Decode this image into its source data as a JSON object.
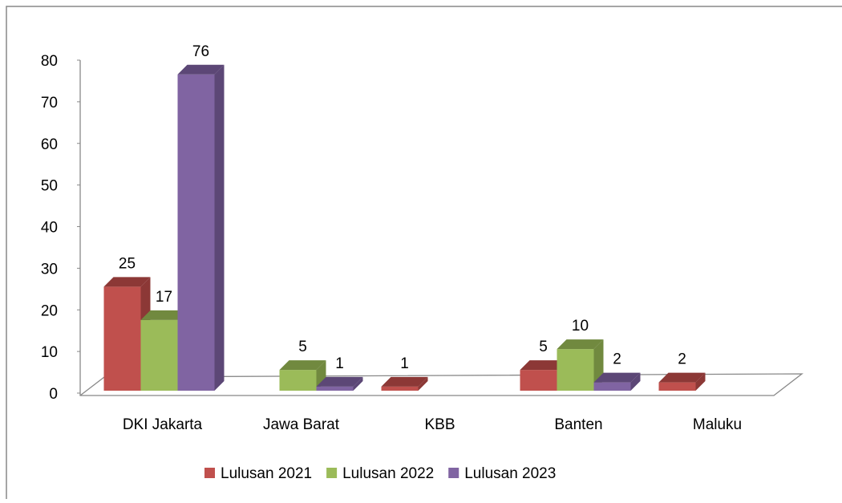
{
  "chart_data": {
    "type": "bar3d",
    "categories": [
      "DKI Jakarta",
      "Jawa Barat",
      "KBB",
      "Banten",
      "Maluku"
    ],
    "series": [
      {
        "name": "Lulusan 2021",
        "color": "#c0504d",
        "side": "#8c3836",
        "values": [
          25,
          null,
          1,
          5,
          2
        ]
      },
      {
        "name": "Lulusan 2022",
        "color": "#9bbb59",
        "side": "#71893f",
        "values": [
          17,
          5,
          null,
          10,
          null
        ]
      },
      {
        "name": "Lulusan 2023",
        "color": "#8064a2",
        "side": "#5c4776",
        "values": [
          76,
          1,
          null,
          2,
          null
        ]
      }
    ],
    "ylim": [
      0,
      80
    ],
    "yticks": [
      0,
      10,
      20,
      30,
      40,
      50,
      60,
      70,
      80
    ],
    "legend": "bottom"
  }
}
